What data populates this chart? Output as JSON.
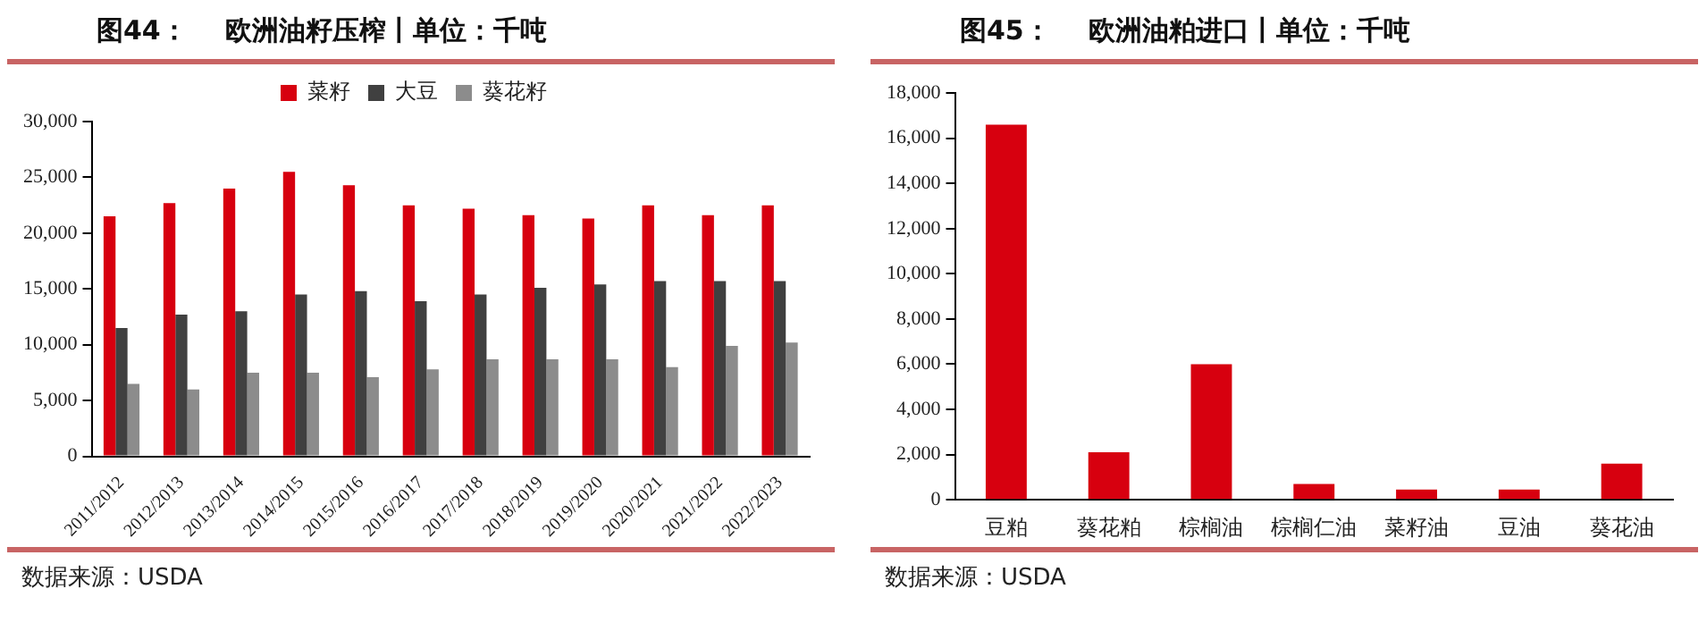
{
  "chart_data": [
    {
      "type": "bar",
      "title": "图44：    欧洲油籽压榨丨单位：千吨",
      "categories": [
        "2011/2012",
        "2012/2013",
        "2013/2014",
        "2014/2015",
        "2015/2016",
        "2016/2017",
        "2017/2018",
        "2018/2019",
        "2019/2020",
        "2020/2021",
        "2021/2022",
        "2022/2023"
      ],
      "series": [
        {
          "name": "菜籽",
          "color": "#d7000f",
          "values": [
            21500,
            22700,
            24000,
            25500,
            24300,
            22500,
            22200,
            21600,
            21300,
            22500,
            21600,
            22500
          ]
        },
        {
          "name": "大豆",
          "color": "#404040",
          "values": [
            11500,
            12700,
            13000,
            14500,
            14800,
            13900,
            14500,
            15100,
            15400,
            15700,
            15700,
            15700
          ]
        },
        {
          "name": "葵花籽",
          "color": "#8c8c8c",
          "values": [
            6500,
            6000,
            7500,
            7500,
            7100,
            7800,
            8700,
            8700,
            8700,
            8000,
            9900,
            10200
          ]
        }
      ],
      "ylim": [
        0,
        30000
      ],
      "yticks": [
        0,
        {
          "value": 5000,
          "label": "5,000"
        },
        {
          "value": 10000,
          "label": "10,000"
        },
        {
          "value": 15000,
          "label": "15,000"
        },
        {
          "value": 20000,
          "label": "20,000"
        },
        {
          "value": 25000,
          "label": "25,000"
        },
        {
          "value": 30000,
          "label": "30,000"
        }
      ],
      "grid": false,
      "legend": "top",
      "annotations": [
        "数据来源：USDA"
      ]
    },
    {
      "type": "bar",
      "title": "图45：    欧洲油粕进口丨单位：千吨",
      "categories": [
        "豆粕",
        "葵花粕",
        "棕榈油",
        "棕榈仁油",
        "菜籽油",
        "豆油",
        "葵花油"
      ],
      "values": [
        16600,
        2100,
        6000,
        700,
        450,
        450,
        1600
      ],
      "color": "#d7000f",
      "ylim": [
        0,
        18000
      ],
      "yticks": [
        0,
        {
          "value": 2000,
          "label": "2,000"
        },
        {
          "value": 4000,
          "label": "4,000"
        },
        {
          "value": 6000,
          "label": "6,000"
        },
        {
          "value": 8000,
          "label": "8,000"
        },
        {
          "value": 10000,
          "label": "10,000"
        },
        {
          "value": 12000,
          "label": "12,000"
        },
        {
          "value": 14000,
          "label": "14,000"
        },
        {
          "value": 16000,
          "label": "16,000"
        },
        {
          "value": 18000,
          "label": "18,000"
        }
      ],
      "grid": false,
      "annotations": [
        "数据来源：USDA"
      ]
    }
  ]
}
